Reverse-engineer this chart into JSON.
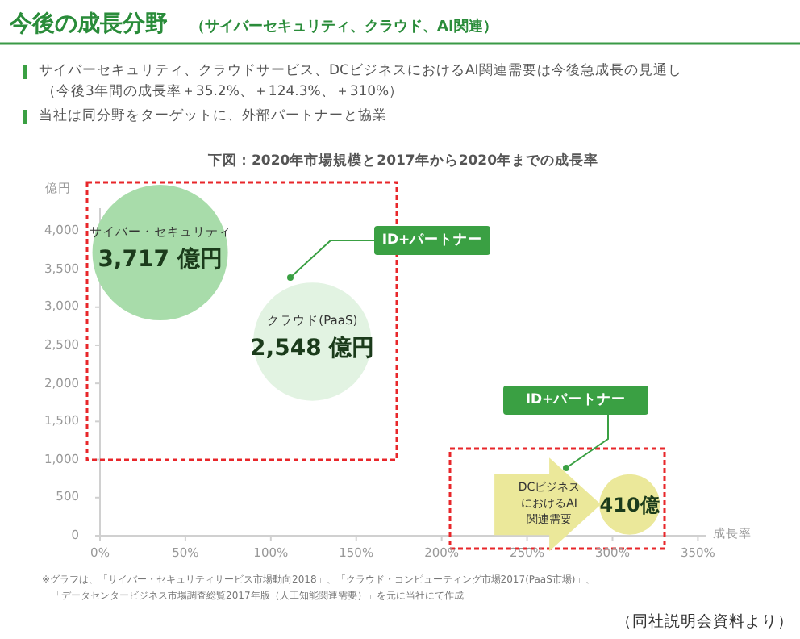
{
  "chart_data": {
    "type": "bubble",
    "title": "今後の成長分野",
    "subtitle": "（サイバーセキュリティ、クラウド、AI関連）",
    "annotations": [
      "サイバーセキュリティ、クラウドサービス、DCビジネスにおけるAI関連需要は今後急成長の見通し",
      "（今後3年間の成長率＋35.2%、＋124.3%、＋310%）",
      "当社は同分野をターゲットに、外部パートナーと協業",
      "下図：2020年市場規模と2017年から2020年までの成長率",
      "ID+パートナー",
      "ID+パートナー",
      "※グラフは、「サイバー・セキュリティサービス市場動向2018」、「クラウド・コンピューティング市場2017(PaaS市場)」、",
      "「データセンタービジネス市場調査総覧2017年版（人工知能関連需要）」を元に当社にて作成",
      "（同社説明会資料より）"
    ],
    "xlabel": "成長率",
    "ylabel": "億円",
    "series": [
      {
        "name": "サイバー・セキュリティ",
        "color": "#a8dcaa",
        "x": [
          35.2
        ],
        "values": [
          3717
        ],
        "sizes": [
          1
        ],
        "value_labels": [
          "3,717 億円"
        ]
      },
      {
        "name": "クラウド(PaaS)",
        "color": "#e2f3e2",
        "x": [
          124.3
        ],
        "values": [
          2548
        ],
        "sizes": [
          0.76
        ],
        "value_labels": [
          "2,548 億円"
        ]
      },
      {
        "name": "DCビジネスにおけるAI関連需要",
        "color": "#ebe89a",
        "x": [
          310
        ],
        "values": [
          410
        ],
        "sizes": [
          0.2
        ],
        "value_labels": [
          "410億"
        ]
      }
    ],
    "xlim": [
      0,
      355
    ],
    "ylim": [
      0,
      4300
    ],
    "xticks": [
      {
        "value": 0,
        "label": "0%"
      },
      {
        "value": 50,
        "label": "50%"
      },
      {
        "value": 100,
        "label": "100%"
      },
      {
        "value": 150,
        "label": "150%"
      },
      {
        "value": 200,
        "label": "200%"
      },
      {
        "value": 250,
        "label": "250%"
      },
      {
        "value": 300,
        "label": "300%"
      },
      {
        "value": 350,
        "label": "350%"
      }
    ],
    "yticks": [
      0,
      500,
      {
        "value": 1000,
        "label": "1,000"
      },
      {
        "value": 1500,
        "label": "1,500"
      },
      {
        "value": 2000,
        "label": "2,000"
      },
      {
        "value": 2500,
        "label": "2,500"
      },
      {
        "value": 3000,
        "label": "3,000"
      },
      {
        "value": 3500,
        "label": "3,500"
      },
      {
        "value": 4000,
        "label": "4,000"
      }
    ],
    "grid": false,
    "legend": false
  }
}
